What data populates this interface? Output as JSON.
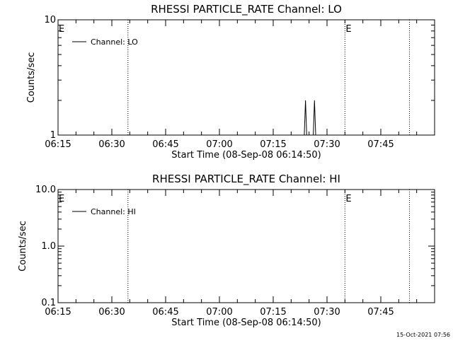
{
  "chart_data": [
    {
      "type": "line",
      "title": "RHESSI PARTICLE_RATE Channel: LO",
      "xlabel": "Start Time (08-Sep-08 06:14:50)",
      "ylabel": "Counts/sec",
      "y_scale": "log",
      "ylim": [
        1,
        10
      ],
      "y_ticks": [
        "1",
        "10"
      ],
      "x_range": [
        "06:15",
        "08:00"
      ],
      "x_ticks": [
        "06:15",
        "06:30",
        "06:45",
        "07:00",
        "07:15",
        "07:30",
        "07:45"
      ],
      "eclipse_markers": [
        {
          "time": "06:14:50",
          "label": "E"
        },
        {
          "time": "06:34:30",
          "label": ""
        },
        {
          "time": "07:35:00",
          "label": "E"
        },
        {
          "time": "07:53:00",
          "label": ""
        }
      ],
      "legend": "top-left",
      "series": [
        {
          "name": "Channel: LO",
          "x": [
            "07:23:40",
            "07:24:00",
            "07:24:20",
            "07:26:10",
            "07:26:30",
            "07:26:50"
          ],
          "y": [
            1,
            2,
            1,
            1,
            2,
            1
          ]
        }
      ]
    },
    {
      "type": "line",
      "title": "RHESSI PARTICLE_RATE Channel: HI",
      "xlabel": "Start Time (08-Sep-08 06:14:50)",
      "ylabel": "Counts/sec",
      "y_scale": "log",
      "ylim": [
        0.1,
        10
      ],
      "y_ticks": [
        "0.1",
        "1.0",
        "10.0"
      ],
      "x_range": [
        "06:15",
        "08:00"
      ],
      "x_ticks": [
        "06:15",
        "06:30",
        "06:45",
        "07:00",
        "07:15",
        "07:30",
        "07:45"
      ],
      "eclipse_markers": [
        {
          "time": "06:14:50",
          "label": "E"
        },
        {
          "time": "06:34:30",
          "label": ""
        },
        {
          "time": "07:35:00",
          "label": "E"
        },
        {
          "time": "07:53:00",
          "label": ""
        }
      ],
      "legend": "top-left",
      "series": [
        {
          "name": "Channel: HI",
          "x": [],
          "y": []
        }
      ]
    }
  ],
  "footer": {
    "timestamp": "15-Oct-2021 07:56"
  }
}
